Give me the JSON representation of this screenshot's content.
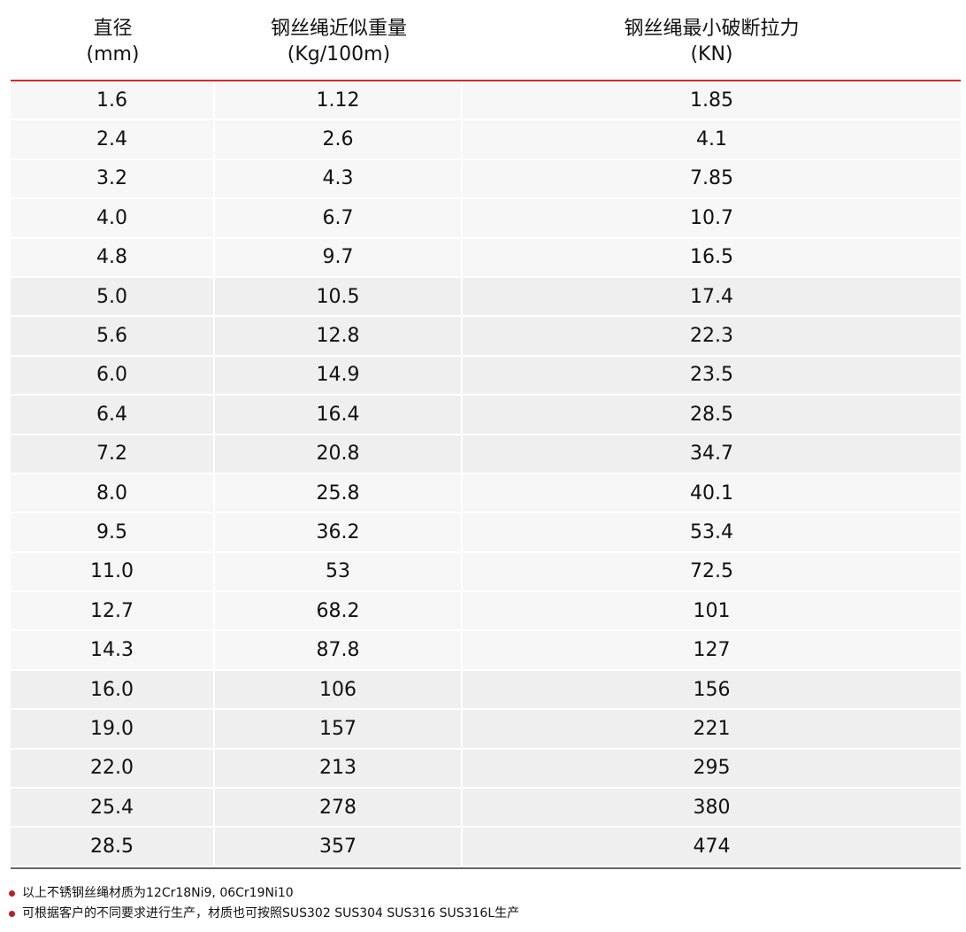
{
  "table": {
    "headers": [
      {
        "line1": "直径",
        "line2": "(mm)"
      },
      {
        "line1": "钢丝绳近似重量",
        "line2": "(Kg/100m)"
      },
      {
        "line1": "钢丝绳最小破断拉力",
        "line2": "(KN)"
      }
    ],
    "rows": [
      [
        "1.6",
        "1.12",
        "1.85"
      ],
      [
        "2.4",
        "2.6",
        "4.1"
      ],
      [
        "3.2",
        "4.3",
        "7.85"
      ],
      [
        "4.0",
        "6.7",
        "10.7"
      ],
      [
        "4.8",
        "9.7",
        "16.5"
      ],
      [
        "5.0",
        "10.5",
        "17.4"
      ],
      [
        "5.6",
        "12.8",
        "22.3"
      ],
      [
        "6.0",
        "14.9",
        "23.5"
      ],
      [
        "6.4",
        "16.4",
        "28.5"
      ],
      [
        "7.2",
        "20.8",
        "34.7"
      ],
      [
        "8.0",
        "25.8",
        "40.1"
      ],
      [
        "9.5",
        "36.2",
        "53.4"
      ],
      [
        "11.0",
        "53",
        "72.5"
      ],
      [
        "12.7",
        "68.2",
        "101"
      ],
      [
        "14.3",
        "87.8",
        "127"
      ],
      [
        "16.0",
        "106",
        "156"
      ],
      [
        "19.0",
        "157",
        "221"
      ],
      [
        "22.0",
        "213",
        "295"
      ],
      [
        "25.4",
        "278",
        "380"
      ],
      [
        "28.5",
        "357",
        "474"
      ]
    ]
  },
  "notes": [
    "以上不锈钢丝绳材质为12Cr18Ni9, 06Cr19Ni10",
    "可根据客户的不同要求进行生产，材质也可按照SUS302 SUS304 SUS316 SUS316L生产"
  ],
  "colors": {
    "accent_line": "#d9262c",
    "bullet": "#b8202a"
  }
}
